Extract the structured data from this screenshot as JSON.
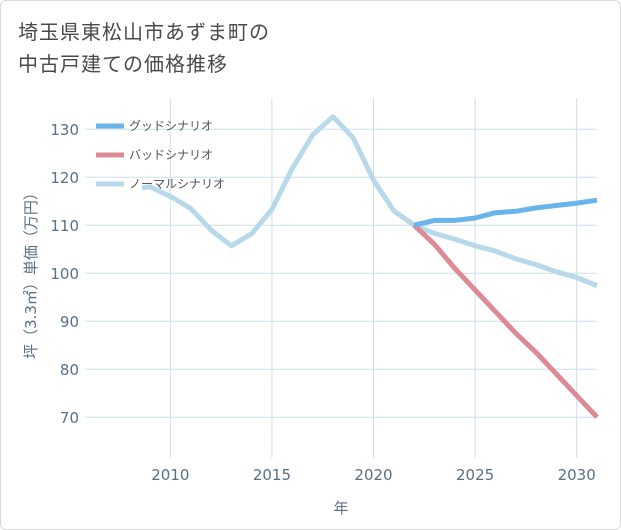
{
  "title_lines": [
    "埼玉県東松山市あずま町の",
    "中古戸建ての価格推移"
  ],
  "colors": {
    "good": "#6ab4ec",
    "bad": "#dc8a94",
    "normal": "#b7d9ea",
    "grid": "#cfdfe8",
    "axis_text": "#5a6f87"
  },
  "chart_data": {
    "type": "line",
    "xlabel": "年",
    "ylabel": "坪（3.3㎡）単価（万円）",
    "xlim": [
      2005.8,
      2031.0
    ],
    "ylim": [
      61.5,
      136.5
    ],
    "x_ticks": [
      2010,
      2015,
      2020,
      2025,
      2030
    ],
    "x_tick_labels": [
      "2010",
      "2015",
      "2020",
      "2025",
      "2030"
    ],
    "y_ticks": [
      70,
      80,
      90,
      100,
      110,
      120,
      130
    ],
    "y_tick_labels": [
      "70",
      "80",
      "90",
      "100",
      "110",
      "120",
      "130"
    ],
    "legend_position": "top-left",
    "series": [
      {
        "name": "グッドシナリオ",
        "key": "good",
        "x": [
          2022,
          2023,
          2024,
          2025,
          2026,
          2027,
          2028,
          2029,
          2030,
          2031
        ],
        "y": [
          110.0,
          111.0,
          111.0,
          111.5,
          112.6,
          112.9,
          113.6,
          114.1,
          114.6,
          115.2
        ]
      },
      {
        "name": "バッドシナリオ",
        "key": "bad",
        "x": [
          2022,
          2023,
          2024,
          2025,
          2026,
          2027,
          2028,
          2029,
          2030,
          2031
        ],
        "y": [
          110.0,
          106.0,
          101.0,
          96.5,
          92.0,
          87.5,
          83.5,
          79.0,
          74.5,
          70.0
        ]
      },
      {
        "name": "ノーマルシナリオ",
        "key": "normal",
        "x": [
          2008.6,
          2009,
          2010,
          2011,
          2012,
          2013,
          2014,
          2015,
          2016,
          2017,
          2018,
          2019,
          2020,
          2021,
          2022,
          2023,
          2024,
          2025,
          2026,
          2027,
          2028,
          2029,
          2030,
          2031
        ],
        "y": [
          117.8,
          118.0,
          116.0,
          113.5,
          109.0,
          105.7,
          108.2,
          113.3,
          121.8,
          128.8,
          132.6,
          128.2,
          119.4,
          113.0,
          110.0,
          108.3,
          107.1,
          105.7,
          104.6,
          103.0,
          101.8,
          100.3,
          99.1,
          97.4
        ]
      }
    ]
  }
}
